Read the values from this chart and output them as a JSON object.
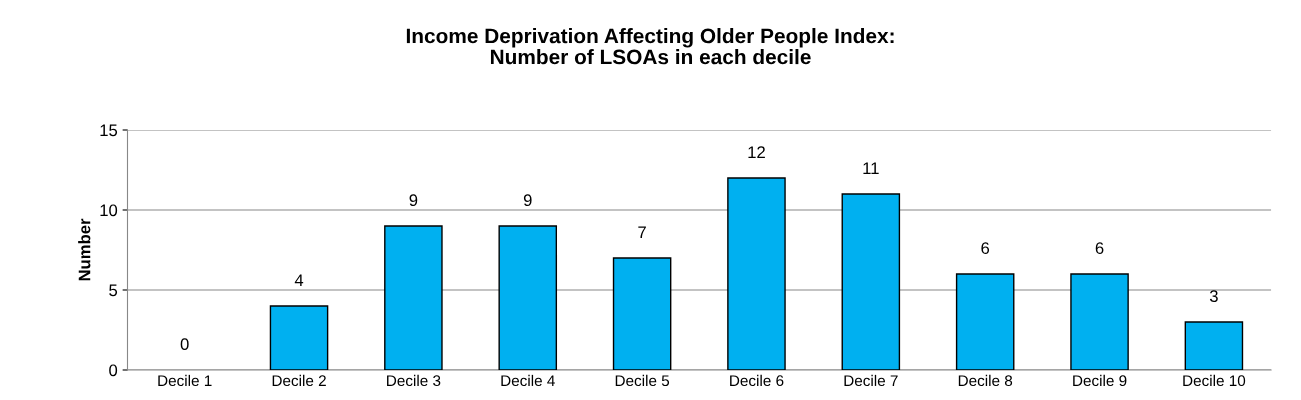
{
  "chart_data": {
    "type": "bar",
    "title": "Income Deprivation Affecting Older People Index:\nNumber of LSOAs in each decile",
    "ylabel": "Number",
    "categories": [
      "Decile 1",
      "Decile 2",
      "Decile 3",
      "Decile 4",
      "Decile 5",
      "Decile 6",
      "Decile 7",
      "Decile 8",
      "Decile 9",
      "Decile 10"
    ],
    "values": [
      0,
      4,
      9,
      9,
      7,
      12,
      11,
      6,
      6,
      3
    ],
    "color": "#00b0f0",
    "ylim": [
      0,
      15
    ],
    "yticks": [
      0,
      5,
      10,
      15
    ],
    "grid": "y",
    "data_labels": true,
    "legend": false
  }
}
